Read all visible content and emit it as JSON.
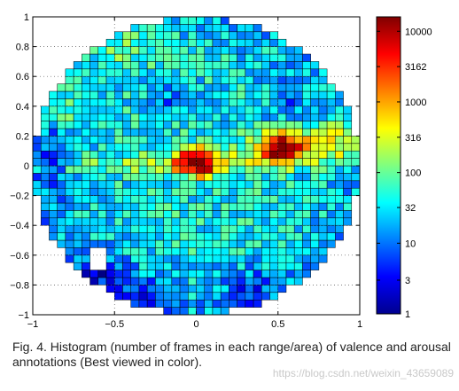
{
  "caption": "Fig. 4. Histogram (number of frames in each range/area) of valence and arousal annotations (Best viewed in color).",
  "watermark": "https://blog.csdn.net/weixin_43659089",
  "chart_data": {
    "type": "heatmap",
    "title": "",
    "xlabel": "",
    "ylabel": "",
    "xlim": [
      -1,
      1
    ],
    "ylim": [
      -1,
      1
    ],
    "x_ticks": [
      -1,
      -0.5,
      0,
      0.5,
      1
    ],
    "x_tick_labels": [
      "−1",
      "−0.5",
      "0",
      "0.5",
      "1"
    ],
    "y_ticks": [
      1,
      0.8,
      0.6,
      0.4,
      0.2,
      0,
      -0.2,
      -0.4,
      -0.6,
      -0.8,
      -1
    ],
    "y_tick_labels": [
      "1",
      "0.8",
      "0.6",
      "0.4",
      "0.2",
      "0",
      "−0.2",
      "−0.4",
      "−0.6",
      "−0.8",
      "−1"
    ],
    "grid": true,
    "bins_per_axis": 40,
    "region": "unit circle",
    "colorscale": "log",
    "colormap": "jet",
    "colorbar": {
      "min": 1,
      "max": 16000,
      "ticks": [
        1,
        3,
        10,
        32,
        100,
        316,
        1000,
        3162,
        10000
      ],
      "tick_labels": [
        "1",
        "3",
        "10",
        "32",
        "100",
        "316",
        "1000",
        "3162",
        "10000"
      ]
    },
    "value_model": {
      "base": 40,
      "hotspots": [
        {
          "x": 0.0,
          "y": 0.02,
          "sx": 0.05,
          "sy": 0.04,
          "a": 140
        },
        {
          "x": 0.52,
          "y": 0.12,
          "sx": 0.06,
          "sy": 0.05,
          "a": 35
        },
        {
          "x": 0.8,
          "y": 0.17,
          "sx": 0.22,
          "sy": 0.06,
          "a": 12
        },
        {
          "x": 0.3,
          "y": 0.05,
          "sx": 0.35,
          "sy": 0.05,
          "a": 3.5
        },
        {
          "x": -0.35,
          "y": 0.0,
          "sx": 0.4,
          "sy": 0.03,
          "a": 1.8
        },
        {
          "x": -0.45,
          "y": 0.83,
          "sx": 0.15,
          "sy": 0.1,
          "a": 3
        },
        {
          "x": -0.8,
          "y": 0.45,
          "sx": 0.1,
          "sy": 0.1,
          "a": 2.5
        }
      ],
      "coldspots": [
        {
          "x": -0.88,
          "y": 0.0,
          "sx": 0.07,
          "sy": 0.22,
          "a": 0.15
        },
        {
          "x": -0.6,
          "y": -0.7,
          "sx": 0.15,
          "sy": 0.12,
          "a": 0.08
        },
        {
          "x": -0.3,
          "y": -0.85,
          "sx": 0.15,
          "sy": 0.1,
          "a": 0.12
        },
        {
          "x": 0.35,
          "y": -0.82,
          "sx": 0.15,
          "sy": 0.12,
          "a": 0.2
        },
        {
          "x": -0.15,
          "y": 0.45,
          "sx": 0.1,
          "sy": 0.08,
          "a": 0.25
        },
        {
          "x": 0.55,
          "y": 0.45,
          "sx": 0.12,
          "sy": 0.12,
          "a": 0.3
        }
      ],
      "empty_regions": [
        {
          "x0": -0.65,
          "x1": -0.525,
          "y0": -0.725,
          "y1": -0.55
        },
        {
          "x0": -0.475,
          "x1": -0.425,
          "y0": -0.625,
          "y1": -0.55
        }
      ]
    }
  }
}
